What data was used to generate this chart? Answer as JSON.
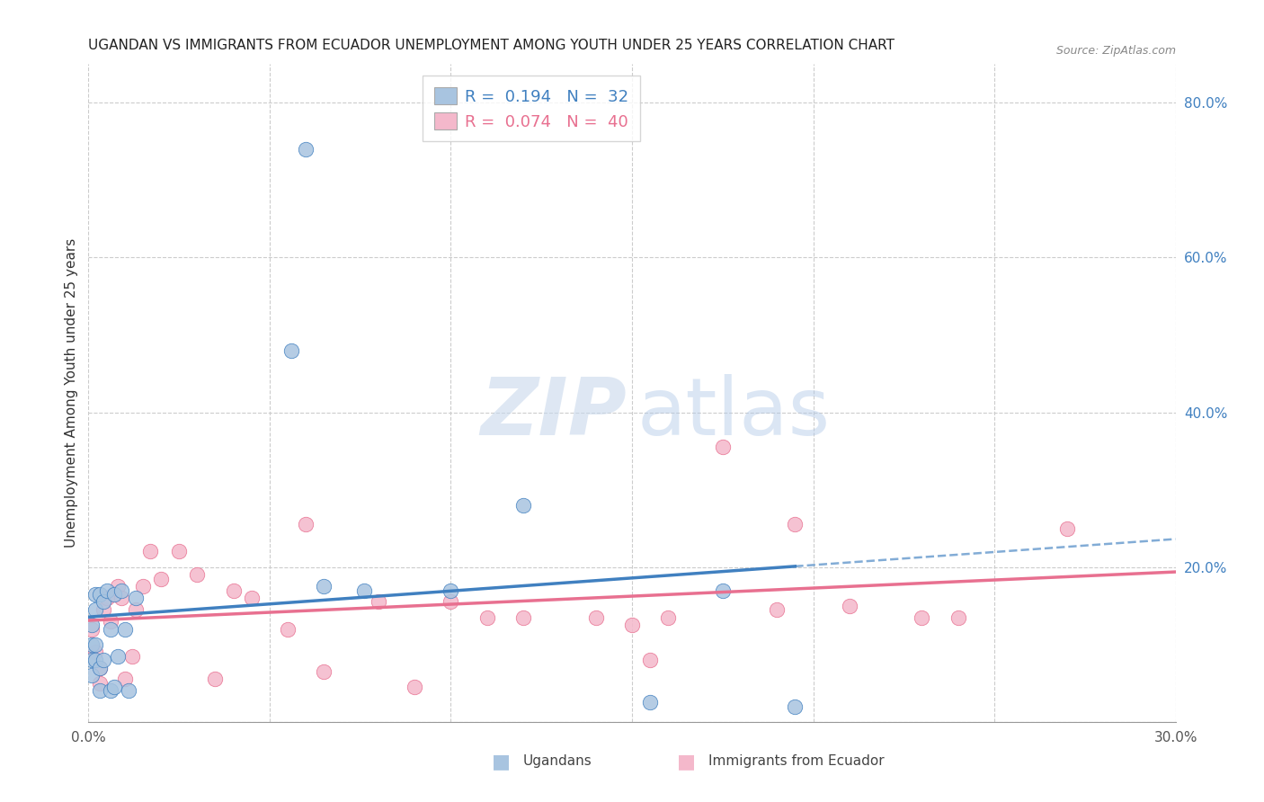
{
  "title": "UGANDAN VS IMMIGRANTS FROM ECUADOR UNEMPLOYMENT AMONG YOUTH UNDER 25 YEARS CORRELATION CHART",
  "source": "Source: ZipAtlas.com",
  "ylabel": "Unemployment Among Youth under 25 years",
  "xlim": [
    0,
    0.3
  ],
  "ylim": [
    0,
    0.85
  ],
  "xtick_positions": [
    0.0,
    0.05,
    0.1,
    0.15,
    0.2,
    0.25,
    0.3
  ],
  "xticklabels": [
    "0.0%",
    "",
    "",
    "",
    "",
    "",
    "30.0%"
  ],
  "ytick_right_positions": [
    0.2,
    0.4,
    0.6,
    0.8
  ],
  "yticklabels_right": [
    "20.0%",
    "40.0%",
    "60.0%",
    "80.0%"
  ],
  "background_color": "#ffffff",
  "grid_color": "#cccccc",
  "legend_R1": "0.194",
  "legend_N1": "32",
  "legend_R2": "0.074",
  "legend_N2": "40",
  "ugandan_color": "#a8c4e0",
  "ecuador_color": "#f4b8cb",
  "line_blue": "#4080c0",
  "line_pink": "#e87090",
  "ugandans_x": [
    0.001,
    0.001,
    0.001,
    0.001,
    0.002,
    0.002,
    0.002,
    0.002,
    0.003,
    0.003,
    0.003,
    0.004,
    0.004,
    0.005,
    0.006,
    0.006,
    0.007,
    0.007,
    0.008,
    0.009,
    0.01,
    0.011,
    0.013,
    0.056,
    0.06,
    0.065,
    0.076,
    0.1,
    0.12,
    0.155,
    0.175,
    0.195
  ],
  "ugandans_y": [
    0.125,
    0.1,
    0.08,
    0.06,
    0.145,
    0.165,
    0.1,
    0.08,
    0.07,
    0.04,
    0.165,
    0.08,
    0.155,
    0.17,
    0.12,
    0.04,
    0.165,
    0.045,
    0.085,
    0.17,
    0.12,
    0.04,
    0.16,
    0.48,
    0.74,
    0.175,
    0.17,
    0.17,
    0.28,
    0.025,
    0.17,
    0.02
  ],
  "ecuador_x": [
    0.001,
    0.002,
    0.003,
    0.003,
    0.004,
    0.005,
    0.006,
    0.007,
    0.008,
    0.009,
    0.01,
    0.012,
    0.013,
    0.015,
    0.017,
    0.02,
    0.025,
    0.03,
    0.035,
    0.04,
    0.045,
    0.055,
    0.06,
    0.065,
    0.08,
    0.09,
    0.1,
    0.11,
    0.12,
    0.14,
    0.15,
    0.155,
    0.16,
    0.175,
    0.19,
    0.21,
    0.23,
    0.24,
    0.27,
    0.195
  ],
  "ecuador_y": [
    0.12,
    0.09,
    0.07,
    0.05,
    0.145,
    0.16,
    0.13,
    0.165,
    0.175,
    0.16,
    0.055,
    0.085,
    0.145,
    0.175,
    0.22,
    0.185,
    0.22,
    0.19,
    0.055,
    0.17,
    0.16,
    0.12,
    0.255,
    0.065,
    0.155,
    0.045,
    0.155,
    0.135,
    0.135,
    0.135,
    0.125,
    0.08,
    0.135,
    0.355,
    0.145,
    0.15,
    0.135,
    0.135,
    0.25,
    0.255
  ]
}
